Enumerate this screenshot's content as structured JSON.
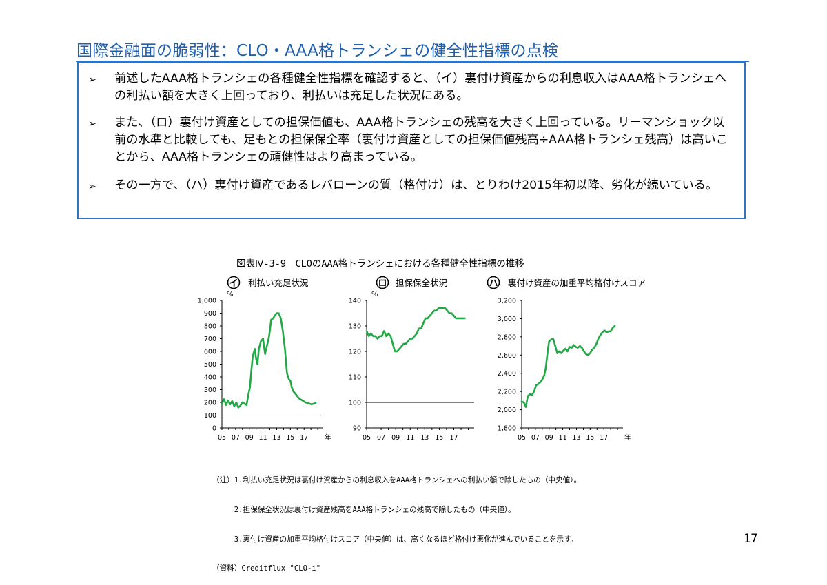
{
  "title": "国際金融面の脆弱性：CLO・AAA格トランシェの健全性指標の点検",
  "bullets": [
    {
      "mark": "➢",
      "text": "前述したAAA格トランシェの各種健全性指標を確認すると、（イ）裏付け資産からの利息収入はAAA格トランシェへの利払い額を大きく上回っており、利払いは充足した状況にある。"
    },
    {
      "mark": "➢",
      "text": "また、（ロ）裏付け資産としての担保価値も、AAA格トランシェの残高を大きく上回っている。リーマンショック以前の水準と比較しても、足もとの担保保全率（裏付け資産としての担保価値残高÷AAA格トランシェ残高）は高いことから、AAA格トランシェの頑健性はより高まっている。"
    },
    {
      "mark": "➢",
      "text": "その一方で、（ハ）裏付け資産であるレバローンの質（格付け）は、とりわけ2015年初以降、劣化が続いている。"
    }
  ],
  "figure_title": "図表Ⅳ-3-9　CLOのAAA格トランシェにおける各種健全性指標の推移",
  "notes": [
    "（注）1.利払い充足状況は裏付け資産からの利息収入をAAA格トランシェへの利払い額で除したもの（中央値）。",
    "　　　2.担保保全状況は裏付け資産残高をAAA格トランシェの残高で除したもの（中央値）。",
    "　　　3.裏付け資産の加重平均格付けスコア（中央値）は、高くなるほど格付け悪化が進んでいることを示す。",
    "（資料）Creditflux \"CLO-i\""
  ],
  "page_number": "17",
  "colors": {
    "title": "#1f5fae",
    "border": "#2f74c4",
    "line": "#22a845"
  },
  "chart_data": [
    {
      "type": "line",
      "badge": "イ",
      "title": "利払い充足状況",
      "unit_label": "%",
      "x_unit_label": "年",
      "ylim": [
        0,
        1000
      ],
      "y_ticks": [
        0,
        100,
        200,
        300,
        400,
        500,
        600,
        700,
        800,
        900,
        1000
      ],
      "y_tick_labels": [
        "0",
        "100",
        "200",
        "300",
        "400",
        "500",
        "600",
        "700",
        "800",
        "900",
        "1,000"
      ],
      "xlim": [
        2005,
        2019.8
      ],
      "x_ticks": [
        2005,
        2007,
        2009,
        2011,
        2013,
        2015,
        2017
      ],
      "x_tick_labels": [
        "05",
        "07",
        "09",
        "11",
        "13",
        "15",
        "17"
      ],
      "reference_line": 100,
      "series": [
        {
          "x": [
            2005.0,
            2005.3,
            2005.6,
            2005.9,
            2006.2,
            2006.5,
            2006.8,
            2007.1,
            2007.4,
            2007.7,
            2008.0,
            2008.3,
            2008.6,
            2008.9,
            2009.1,
            2009.3,
            2009.5,
            2009.8,
            2010.0,
            2010.2,
            2010.4,
            2010.7,
            2011.0,
            2011.3,
            2011.6,
            2011.9,
            2012.2,
            2012.5,
            2012.7,
            2013.0,
            2013.3,
            2013.6,
            2013.9,
            2014.2,
            2014.5,
            2014.8,
            2015.0,
            2015.2,
            2015.4,
            2015.7,
            2016.0,
            2016.3,
            2016.6,
            2016.9,
            2017.2,
            2017.5,
            2017.8,
            2018.1,
            2018.4,
            2018.7
          ],
          "y": [
            190,
            225,
            180,
            215,
            185,
            210,
            170,
            200,
            160,
            175,
            200,
            190,
            180,
            270,
            320,
            450,
            560,
            620,
            540,
            500,
            620,
            680,
            700,
            580,
            650,
            720,
            850,
            860,
            880,
            900,
            900,
            860,
            760,
            620,
            430,
            380,
            370,
            320,
            290,
            270,
            250,
            230,
            220,
            210,
            200,
            195,
            190,
            185,
            190,
            195
          ]
        }
      ]
    },
    {
      "type": "line",
      "badge": "ロ",
      "title": "担保保全状況",
      "unit_label": "%",
      "ylim": [
        90,
        140
      ],
      "y_ticks": [
        90,
        100,
        110,
        120,
        130,
        140
      ],
      "y_tick_labels": [
        "90",
        "100",
        "110",
        "120",
        "130",
        "140"
      ],
      "xlim": [
        2005,
        2019.8
      ],
      "x_ticks": [
        2005,
        2007,
        2009,
        2011,
        2013,
        2015,
        2017
      ],
      "x_tick_labels": [
        "05",
        "07",
        "09",
        "11",
        "13",
        "15",
        "17"
      ],
      "reference_line": 100,
      "series": [
        {
          "x": [
            2005.0,
            2005.3,
            2005.6,
            2005.9,
            2006.2,
            2006.5,
            2006.8,
            2007.1,
            2007.4,
            2007.7,
            2008.0,
            2008.3,
            2008.6,
            2008.9,
            2009.2,
            2009.5,
            2009.8,
            2010.1,
            2010.4,
            2010.7,
            2011.0,
            2011.3,
            2011.6,
            2011.9,
            2012.2,
            2012.5,
            2012.8,
            2013.1,
            2013.4,
            2013.7,
            2014.0,
            2014.3,
            2014.6,
            2014.9,
            2015.2,
            2015.5,
            2015.8,
            2016.1,
            2016.4,
            2016.7,
            2017.0,
            2017.3,
            2017.6,
            2017.9,
            2018.2,
            2018.5
          ],
          "y": [
            128,
            126,
            127,
            126,
            126,
            125,
            126,
            126,
            128,
            126,
            127,
            126,
            123,
            120,
            120,
            121,
            122,
            123,
            123,
            124,
            125,
            125,
            126,
            127,
            129,
            129,
            131,
            133,
            133,
            134,
            135,
            136,
            136,
            137,
            137,
            137,
            137,
            136,
            135,
            135,
            134,
            133,
            133,
            133,
            133,
            133
          ]
        }
      ]
    },
    {
      "type": "line",
      "badge": "ハ",
      "title": "裏付け資産の加重平均格付けスコア",
      "ylim": [
        1800,
        3200
      ],
      "y_ticks": [
        1800,
        2000,
        2200,
        2400,
        2600,
        2800,
        3000,
        3200
      ],
      "y_tick_labels": [
        "1,800",
        "2,000",
        "2,200",
        "2,400",
        "2,600",
        "2,800",
        "3,000",
        "3,200"
      ],
      "xlim": [
        2005,
        2019.8
      ],
      "x_ticks": [
        2005,
        2007,
        2009,
        2011,
        2013,
        2015,
        2017
      ],
      "x_tick_labels": [
        "05",
        "07",
        "09",
        "11",
        "13",
        "15",
        "17"
      ],
      "x_unit_label": "年",
      "series": [
        {
          "x": [
            2005.0,
            2005.3,
            2005.6,
            2005.9,
            2006.2,
            2006.5,
            2006.8,
            2007.1,
            2007.4,
            2007.7,
            2008.0,
            2008.3,
            2008.5,
            2008.8,
            2009.0,
            2009.3,
            2009.6,
            2009.9,
            2010.2,
            2010.5,
            2010.8,
            2011.1,
            2011.4,
            2011.7,
            2012.0,
            2012.3,
            2012.6,
            2012.9,
            2013.2,
            2013.5,
            2013.8,
            2014.1,
            2014.4,
            2014.7,
            2015.0,
            2015.3,
            2015.6,
            2015.9,
            2016.2,
            2016.5,
            2016.8,
            2017.1,
            2017.4,
            2017.7,
            2018.0,
            2018.3,
            2018.6
          ],
          "y": [
            2090,
            2080,
            2030,
            2150,
            2170,
            2160,
            2200,
            2270,
            2280,
            2300,
            2330,
            2380,
            2450,
            2640,
            2750,
            2770,
            2780,
            2700,
            2620,
            2640,
            2620,
            2650,
            2670,
            2640,
            2690,
            2680,
            2710,
            2690,
            2680,
            2700,
            2680,
            2640,
            2610,
            2600,
            2620,
            2660,
            2680,
            2720,
            2780,
            2820,
            2850,
            2870,
            2850,
            2860,
            2860,
            2900,
            2920
          ]
        }
      ]
    }
  ]
}
